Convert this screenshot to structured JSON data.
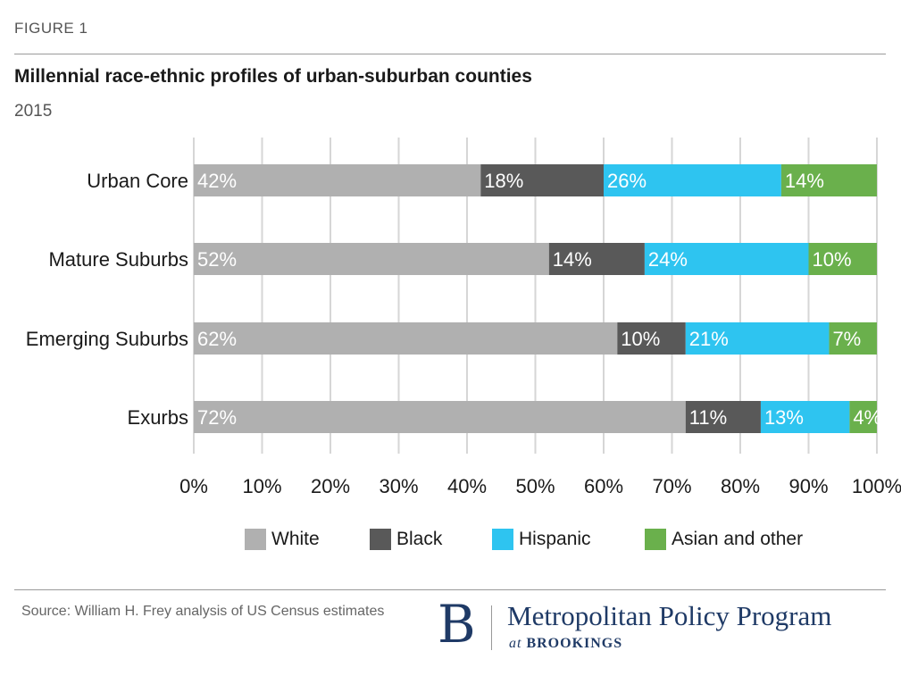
{
  "figure_label": "FIGURE 1",
  "source": "Source: William H. Frey analysis of US Census estimates",
  "logo": {
    "letter": "B",
    "name": "Metropolitan Policy Program",
    "sub_prefix": "at ",
    "sub_name": "BROOKINGS"
  },
  "colors": {
    "White": "#b0b0b0",
    "Black": "#595959",
    "Hispanic": "#2ec4f0",
    "Asian and other": "#6ab04c"
  },
  "chart_data": {
    "type": "bar",
    "orientation": "horizontal",
    "stacked": true,
    "title": "Millennial race-ethnic profiles of urban-suburban counties",
    "subtitle": "2015",
    "categories": [
      "Urban Core",
      "Mature Suburbs",
      "Emerging Suburbs",
      "Exurbs"
    ],
    "series": [
      {
        "name": "White",
        "values": [
          42,
          52,
          62,
          72
        ],
        "labels": [
          "42%",
          "52%",
          "62%",
          "72%"
        ]
      },
      {
        "name": "Black",
        "values": [
          18,
          14,
          10,
          11
        ],
        "labels": [
          "18%",
          "14%",
          "10%",
          "11%"
        ]
      },
      {
        "name": "Hispanic",
        "values": [
          26,
          24,
          21,
          13
        ],
        "labels": [
          "26%",
          "24%",
          "21%",
          "13%"
        ]
      },
      {
        "name": "Asian and other",
        "values": [
          14,
          10,
          7,
          4
        ],
        "labels": [
          "14%",
          "10%",
          "7%",
          "4%"
        ]
      }
    ],
    "xlim": [
      0,
      100
    ],
    "xticks": [
      "0%",
      "10%",
      "20%",
      "30%",
      "40%",
      "50%",
      "60%",
      "70%",
      "80%",
      "90%",
      "100%"
    ],
    "grid": true,
    "legend": "bottom"
  }
}
